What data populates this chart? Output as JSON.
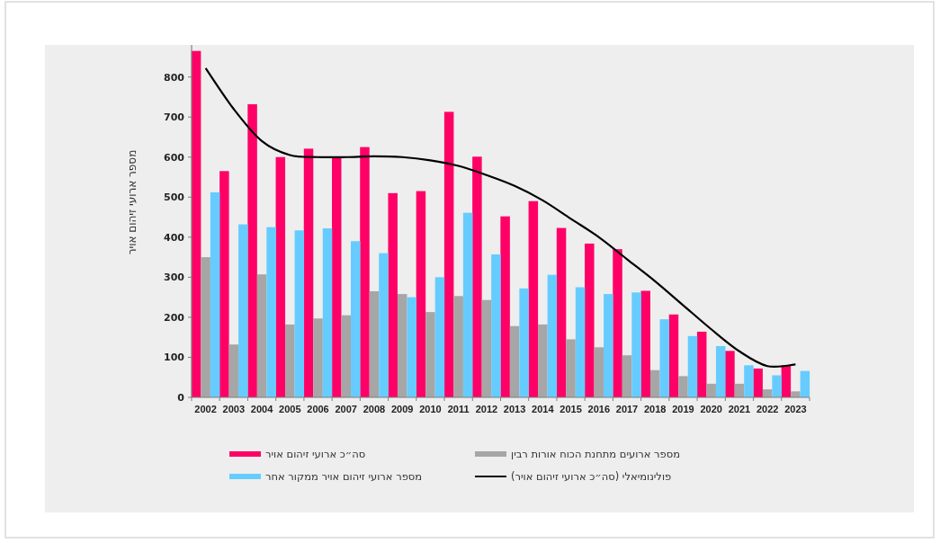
{
  "chart_data": {
    "type": "bar",
    "categories": [
      "2002",
      "2003",
      "2004",
      "2005",
      "2006",
      "2007",
      "2008",
      "2009",
      "2010",
      "2011",
      "2012",
      "2013",
      "2014",
      "2015",
      "2016",
      "2017",
      "2018",
      "2019",
      "2020",
      "2021",
      "2022",
      "2023"
    ],
    "ylabel": "מספר ארועי זיהום אויר",
    "ylim": [
      0,
      880
    ],
    "yticks": [
      0,
      100,
      200,
      300,
      400,
      500,
      600,
      700,
      800
    ],
    "grid": false,
    "legend": "bottom",
    "series": [
      {
        "name": "סה״כ ארועי זיהום אויר",
        "color": "#ff0066",
        "values": [
          865,
          565,
          732,
          600,
          621,
          598,
          625,
          510,
          515,
          713,
          601,
          452,
          490,
          423,
          384,
          370,
          266,
          207,
          164,
          116,
          72,
          80
        ]
      },
      {
        "name": "מספר ארועים מתחנת הכוח אורות רבין",
        "color": "#a6a6a6",
        "values": [
          350,
          132,
          307,
          182,
          197,
          205,
          265,
          258,
          213,
          253,
          243,
          178,
          182,
          145,
          125,
          105,
          68,
          53,
          34,
          34,
          20,
          15
        ]
      },
      {
        "name": "מספר ארועי זיהום אויר ממקור אחר",
        "color": "#66ccff",
        "values": [
          512,
          432,
          425,
          417,
          422,
          390,
          360,
          250,
          300,
          461,
          357,
          272,
          306,
          275,
          258,
          262,
          195,
          153,
          128,
          80,
          55,
          66
        ]
      },
      {
        "name": "פולינומיאלי (סה״כ ארועי זיהום אויר)",
        "color": "#000000",
        "type": "line",
        "marker": "none",
        "values": [
          822,
          720,
          640,
          605,
          600,
          600,
          602,
          600,
          592,
          578,
          555,
          528,
          492,
          446,
          400,
          345,
          290,
          230,
          170,
          115,
          78,
          82
        ]
      }
    ]
  }
}
